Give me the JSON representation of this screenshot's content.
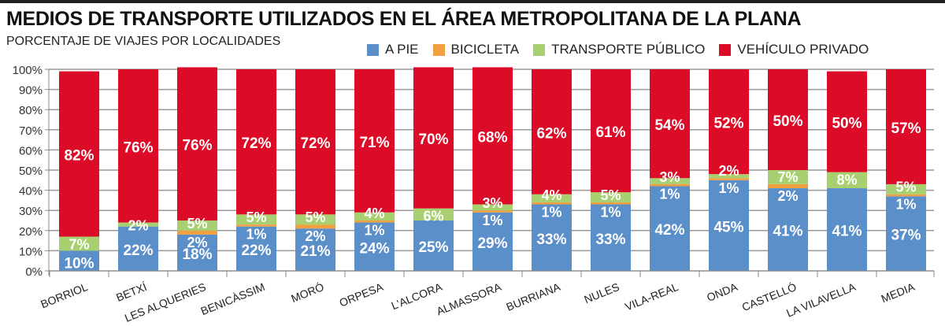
{
  "chart_data": {
    "type": "bar",
    "stacked": true,
    "title": "MEDIOS DE TRANSPORTE UTILIZADOS EN EL ÁREA METROPOLITANA DE LA PLANA",
    "subtitle": "PORCENTAJE DE VIAJES POR LOCALIDADES",
    "ylim": [
      0,
      100
    ],
    "yticks": [
      "0%",
      "10%",
      "20%",
      "30%",
      "40%",
      "50%",
      "60%",
      "70%",
      "80%",
      "90%",
      "100%"
    ],
    "grid": true,
    "legend_position": "top-right",
    "categories": [
      "BORRIOL",
      "BETXÍ",
      "LES ALQUERIES",
      "BENICÀSSIM",
      "MORÓ",
      "ORPESA",
      "L'ALCORA",
      "ALMASSORA",
      "BURRIANA",
      "NULES",
      "VILA-REAL",
      "ONDA",
      "CASTELLÓ",
      "LA VILAVELLA",
      "MEDIA"
    ],
    "series": [
      {
        "name": "A PIE",
        "color": "#5b8fc9",
        "values": [
          10,
          22,
          18,
          22,
          21,
          24,
          25,
          29,
          33,
          33,
          42,
          45,
          41,
          41,
          37
        ]
      },
      {
        "name": "BICICLETA",
        "color": "#f0a040",
        "values": [
          null,
          null,
          2,
          1,
          2,
          1,
          null,
          1,
          1,
          1,
          1,
          1,
          2,
          null,
          1
        ]
      },
      {
        "name": "TRANSPORTE PÚBLICO",
        "color": "#a8d070",
        "values": [
          7,
          2,
          5,
          5,
          5,
          4,
          6,
          3,
          4,
          5,
          3,
          2,
          7,
          8,
          5
        ]
      },
      {
        "name": "VEHÍCULO PRIVADO",
        "color": "#dc0c28",
        "values": [
          82,
          76,
          76,
          72,
          72,
          71,
          70,
          68,
          62,
          61,
          54,
          52,
          50,
          50,
          57
        ]
      }
    ]
  }
}
